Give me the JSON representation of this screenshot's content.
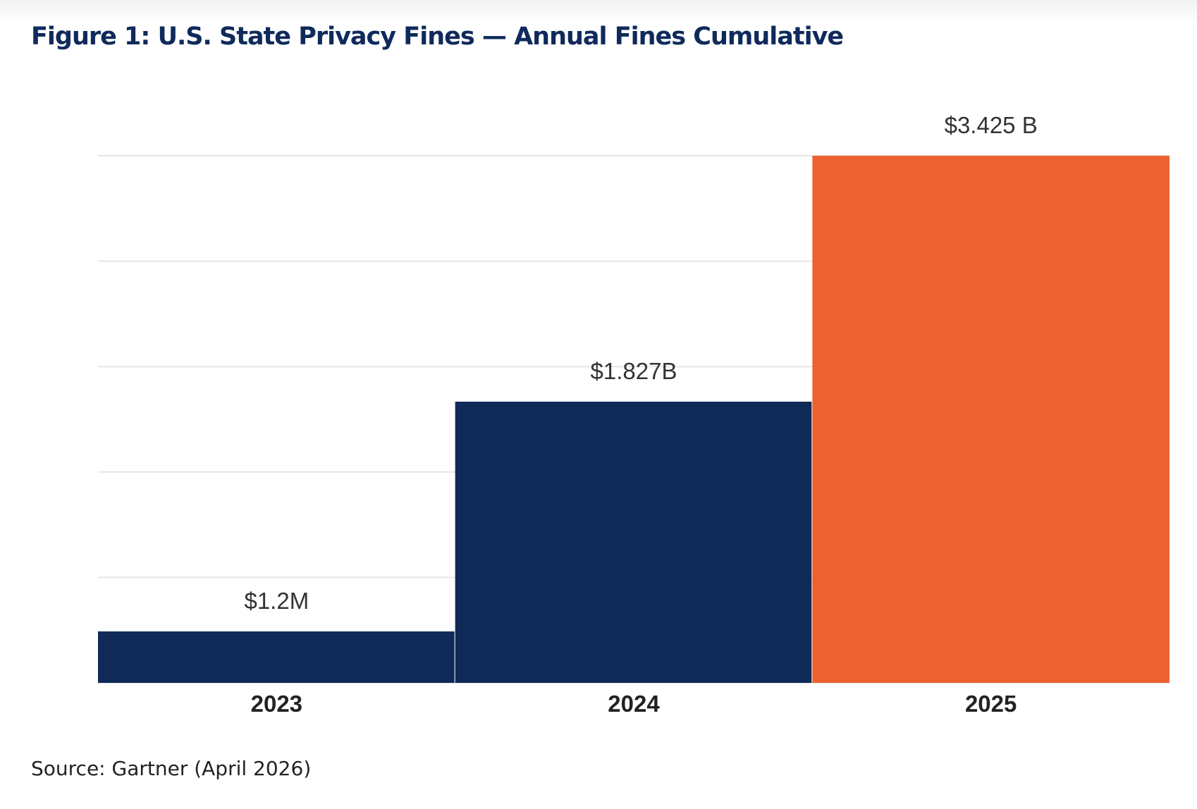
{
  "figure": {
    "title": "Figure 1: U.S. State Privacy Fines — Annual Fines Cumulative",
    "source": "Source: Gartner (April 2026)"
  },
  "chart_data": {
    "type": "bar",
    "title": "Figure 1: U.S. State Privacy Fines — Annual Fines Cumulative",
    "xlabel": "",
    "ylabel": "",
    "categories": [
      "2023",
      "2024",
      "2025"
    ],
    "values": [
      0.0012,
      1.827,
      3.425
    ],
    "value_unit": "USD billions",
    "data_labels": [
      "$1.2M",
      "$1.827B",
      "$3.425 B"
    ],
    "colors": [
      "#0f2a57",
      "#0f2a57",
      "#eb6230"
    ],
    "grid": true,
    "legend": "none",
    "bar_width": "full-category"
  }
}
